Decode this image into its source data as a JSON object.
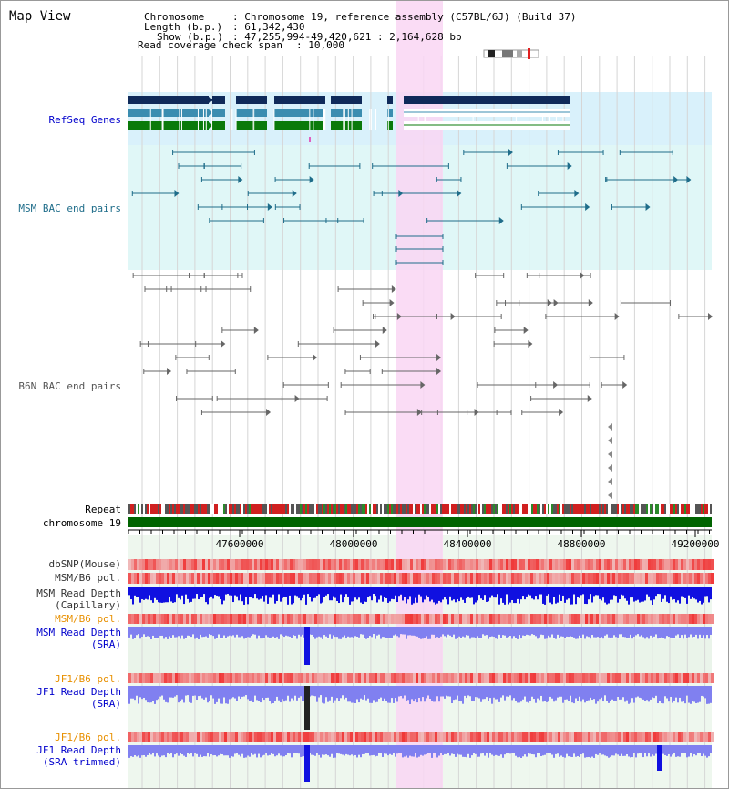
{
  "page": {
    "title": "Map View"
  },
  "info": {
    "chromosome_key": "Chromosome",
    "chromosome_val": ": Chromosome 19, reference assembly (C57BL/6J) (Build 37)",
    "length_key": "Length (b.p.)",
    "length_val": ": 61,342,430",
    "show_key": "Show (b.p.)",
    "show_val": ": 47,255,994-49,420,621 : 2,164,628 bp",
    "coverage_key": "Read coverage check span",
    "coverage_val": ": 10,000"
  },
  "tracks": {
    "refseq": "RefSeq Genes",
    "msm_bac": "MSM BAC end pairs",
    "b6n_bac": "B6N BAC end pairs",
    "repeat": "Repeat",
    "chromosome": "chromosome 19",
    "dbsnp": "dbSNP(Mouse)",
    "msm_b6_pol": "MSM/B6 pol.",
    "msm_depth_cap_1": "MSM Read Depth",
    "msm_depth_cap_2": "(Capillary)",
    "msm_b6_pol_2": "MSM/B6 pol.",
    "msm_depth_sra_1": "MSM Read Depth",
    "msm_depth_sra_2": "(SRA)",
    "jf1_b6_pol": "JF1/B6 pol.",
    "jf1_depth_sra_1": "JF1 Read Depth",
    "jf1_depth_sra_2": "(SRA)",
    "jf1_b6_pol_2": "JF1/B6 pol.",
    "jf1_depth_trim_1": "JF1 Read Depth",
    "jf1_depth_trim_2": "(SRA trimmed)"
  },
  "axis": {
    "ticks": [
      "47600000",
      "48000000",
      "48400000",
      "48800000",
      "49200000"
    ]
  },
  "colors": {
    "blue_label": "#0000cc",
    "grey_label": "#333333",
    "orange_label": "#e89000",
    "highlight": "#f9d6f3",
    "chrom_green": "#006400",
    "gene_navy": "#0f2a5a",
    "gene_teal": "#3b8db0",
    "gene_green": "#0a7a0a",
    "bac_msm": "#1f6d8a",
    "bac_b6n": "#666666",
    "depth_dark_blue": "#1010e0",
    "depth_light_blue": "#8080f0"
  }
}
